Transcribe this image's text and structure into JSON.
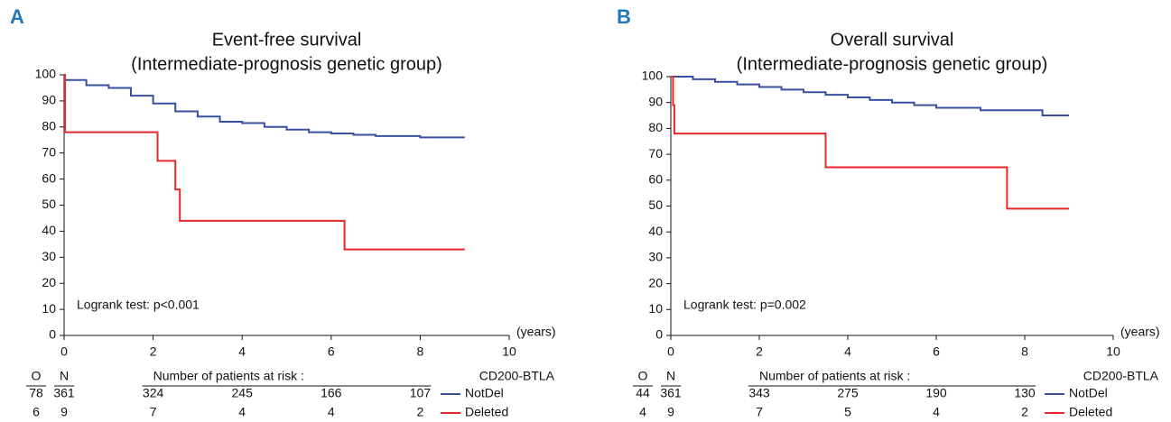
{
  "chart_data": [
    {
      "type": "step",
      "panel": "A",
      "title": "Event-free survival",
      "subtitle": "(Intermediate-prognosis genetic group)",
      "x_label": "(years)",
      "annotation": "Logrank test: p<0.001",
      "xlim": [
        0,
        10
      ],
      "ylim": [
        0,
        100
      ],
      "xticks": [
        0,
        2,
        4,
        6,
        8,
        10
      ],
      "yticks": [
        0,
        10,
        20,
        30,
        40,
        50,
        60,
        70,
        80,
        90,
        100
      ],
      "legend_title": "CD200-BTLA",
      "risk_headers": [
        "O",
        "N"
      ],
      "risk_title": "Number of patients at risk :",
      "series": [
        {
          "name": "NotDel",
          "color": "#3a4fa0",
          "observed": 78,
          "total": 361,
          "at_risk": [
            324,
            245,
            166,
            107
          ],
          "x": [
            0,
            0.5,
            1,
            1.5,
            2,
            2.5,
            3,
            3.5,
            4,
            4.5,
            5,
            5.5,
            6,
            6.5,
            7,
            8,
            9
          ],
          "values": [
            98,
            96,
            95,
            92,
            89,
            86,
            84,
            82,
            81.5,
            80,
            79,
            78,
            77.5,
            77,
            76.5,
            76,
            76
          ]
        },
        {
          "name": "Deleted",
          "color": "#e8262a",
          "observed": 6,
          "total": 9,
          "at_risk": [
            7,
            4,
            4,
            2
          ],
          "x": [
            0,
            0.02,
            2.1,
            2.5,
            2.6,
            6.3,
            9
          ],
          "values": [
            100,
            78,
            67,
            56,
            44,
            33,
            33
          ]
        }
      ]
    },
    {
      "type": "step",
      "panel": "B",
      "title": "Overall survival",
      "subtitle": "(Intermediate-prognosis genetic group)",
      "x_label": "(years)",
      "annotation": "Logrank test: p=0.002",
      "xlim": [
        0,
        10
      ],
      "ylim": [
        0,
        100
      ],
      "xticks": [
        0,
        2,
        4,
        6,
        8,
        10
      ],
      "yticks": [
        0,
        10,
        20,
        30,
        40,
        50,
        60,
        70,
        80,
        90,
        100
      ],
      "legend_title": "CD200-BTLA",
      "risk_headers": [
        "O",
        "N"
      ],
      "risk_title": "Number of patients at risk :",
      "series": [
        {
          "name": "NotDel",
          "color": "#3a4fa0",
          "observed": 44,
          "total": 361,
          "at_risk": [
            343,
            275,
            190,
            130
          ],
          "x": [
            0,
            0.5,
            1,
            1.5,
            2,
            2.5,
            3,
            3.5,
            4,
            4.5,
            5,
            5.5,
            6,
            6.5,
            7,
            8.4,
            9
          ],
          "values": [
            100,
            99,
            98,
            97,
            96,
            95,
            94,
            93,
            92,
            91,
            90,
            89,
            88,
            88,
            87,
            85,
            85
          ]
        },
        {
          "name": "Deleted",
          "color": "#e8262a",
          "observed": 4,
          "total": 9,
          "at_risk": [
            7,
            5,
            4,
            2
          ],
          "x": [
            0,
            0.05,
            0.08,
            3.5,
            7.6,
            9
          ],
          "values": [
            100,
            89,
            78,
            65,
            49,
            49
          ]
        }
      ]
    }
  ]
}
